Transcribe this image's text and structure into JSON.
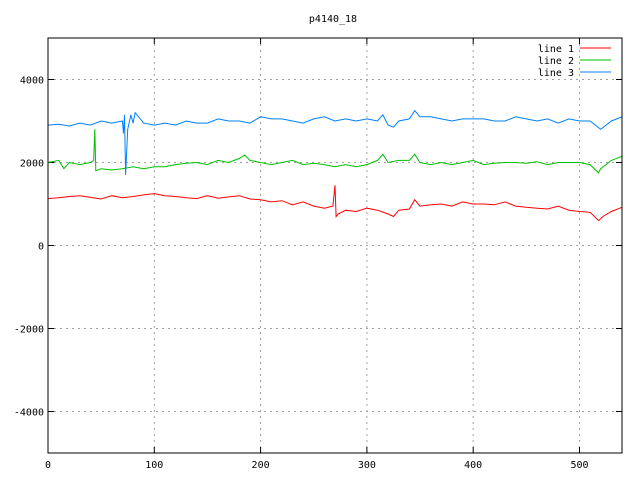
{
  "chart_data": {
    "type": "line",
    "title": "p4140_18",
    "xlabel": "",
    "ylabel": "",
    "xlim": [
      0,
      540
    ],
    "ylim": [
      -5000,
      5000
    ],
    "xticks": [
      0,
      100,
      200,
      300,
      400,
      500
    ],
    "yticks": [
      -4000,
      -2000,
      0,
      2000,
      4000
    ],
    "grid": true,
    "legend_position": "top-right",
    "series": [
      {
        "name": "line 1",
        "color": "#ff0000",
        "x": [
          0,
          10,
          20,
          30,
          40,
          50,
          60,
          70,
          80,
          90,
          100,
          110,
          120,
          130,
          140,
          150,
          160,
          170,
          180,
          190,
          200,
          210,
          220,
          230,
          240,
          250,
          260,
          268,
          270,
          271,
          273,
          280,
          290,
          300,
          310,
          320,
          325,
          330,
          340,
          345,
          350,
          360,
          370,
          380,
          390,
          400,
          410,
          420,
          430,
          440,
          450,
          460,
          470,
          480,
          490,
          500,
          510,
          518,
          522,
          530,
          540
        ],
        "y": [
          1130,
          1150,
          1180,
          1200,
          1160,
          1120,
          1200,
          1150,
          1180,
          1220,
          1250,
          1200,
          1180,
          1150,
          1130,
          1200,
          1140,
          1170,
          1200,
          1120,
          1100,
          1050,
          1080,
          980,
          1050,
          950,
          900,
          950,
          1450,
          700,
          760,
          850,
          820,
          900,
          850,
          760,
          700,
          850,
          880,
          1100,
          950,
          980,
          1000,
          950,
          1050,
          1000,
          1000,
          980,
          1050,
          950,
          920,
          900,
          880,
          950,
          850,
          820,
          800,
          600,
          700,
          820,
          920
        ]
      },
      {
        "name": "line 2",
        "color": "#00c000",
        "x": [
          0,
          10,
          15,
          20,
          30,
          40,
          43,
          44,
          45,
          50,
          60,
          70,
          80,
          90,
          100,
          110,
          120,
          130,
          140,
          150,
          160,
          170,
          180,
          185,
          190,
          200,
          210,
          220,
          230,
          240,
          250,
          260,
          270,
          280,
          290,
          300,
          310,
          315,
          320,
          330,
          340,
          345,
          350,
          360,
          370,
          380,
          390,
          400,
          410,
          420,
          430,
          440,
          450,
          460,
          470,
          480,
          490,
          500,
          510,
          518,
          520,
          530,
          540
        ],
        "y": [
          2000,
          2050,
          1850,
          2000,
          1950,
          2000,
          2050,
          2800,
          1800,
          1850,
          1820,
          1850,
          1900,
          1850,
          1900,
          1900,
          1950,
          1980,
          2000,
          1950,
          2050,
          2000,
          2100,
          2180,
          2050,
          2000,
          1950,
          2000,
          2050,
          1950,
          1980,
          1950,
          1900,
          1950,
          1900,
          1950,
          2050,
          2200,
          2000,
          2050,
          2050,
          2200,
          2000,
          1950,
          2000,
          1950,
          2000,
          2050,
          1950,
          1980,
          2000,
          2000,
          1980,
          2020,
          1950,
          2000,
          2000,
          2000,
          1950,
          1750,
          1850,
          2050,
          2150
        ]
      },
      {
        "name": "line 3",
        "color": "#0080ff",
        "x": [
          0,
          10,
          20,
          30,
          40,
          50,
          60,
          70,
          71,
          72,
          73,
          75,
          78,
          80,
          82,
          90,
          100,
          110,
          120,
          130,
          140,
          150,
          160,
          170,
          180,
          190,
          200,
          210,
          220,
          230,
          240,
          250,
          260,
          270,
          280,
          290,
          300,
          310,
          315,
          320,
          325,
          330,
          340,
          345,
          350,
          360,
          370,
          380,
          390,
          400,
          410,
          420,
          430,
          440,
          450,
          460,
          470,
          480,
          490,
          500,
          510,
          520,
          530,
          540
        ],
        "y": [
          2900,
          2920,
          2880,
          2950,
          2900,
          3000,
          2950,
          3000,
          2700,
          3150,
          1700,
          2800,
          3150,
          2950,
          3200,
          2950,
          2900,
          2950,
          2900,
          3000,
          2950,
          2950,
          3050,
          3000,
          3000,
          2950,
          3100,
          3050,
          3050,
          3000,
          2950,
          3050,
          3100,
          3000,
          3050,
          3000,
          3050,
          3000,
          3150,
          2900,
          2850,
          3000,
          3050,
          3250,
          3100,
          3100,
          3050,
          3000,
          3050,
          3050,
          3050,
          3000,
          3000,
          3100,
          3050,
          3000,
          3050,
          2950,
          3050,
          3000,
          3000,
          2800,
          3000,
          3100
        ]
      }
    ]
  }
}
